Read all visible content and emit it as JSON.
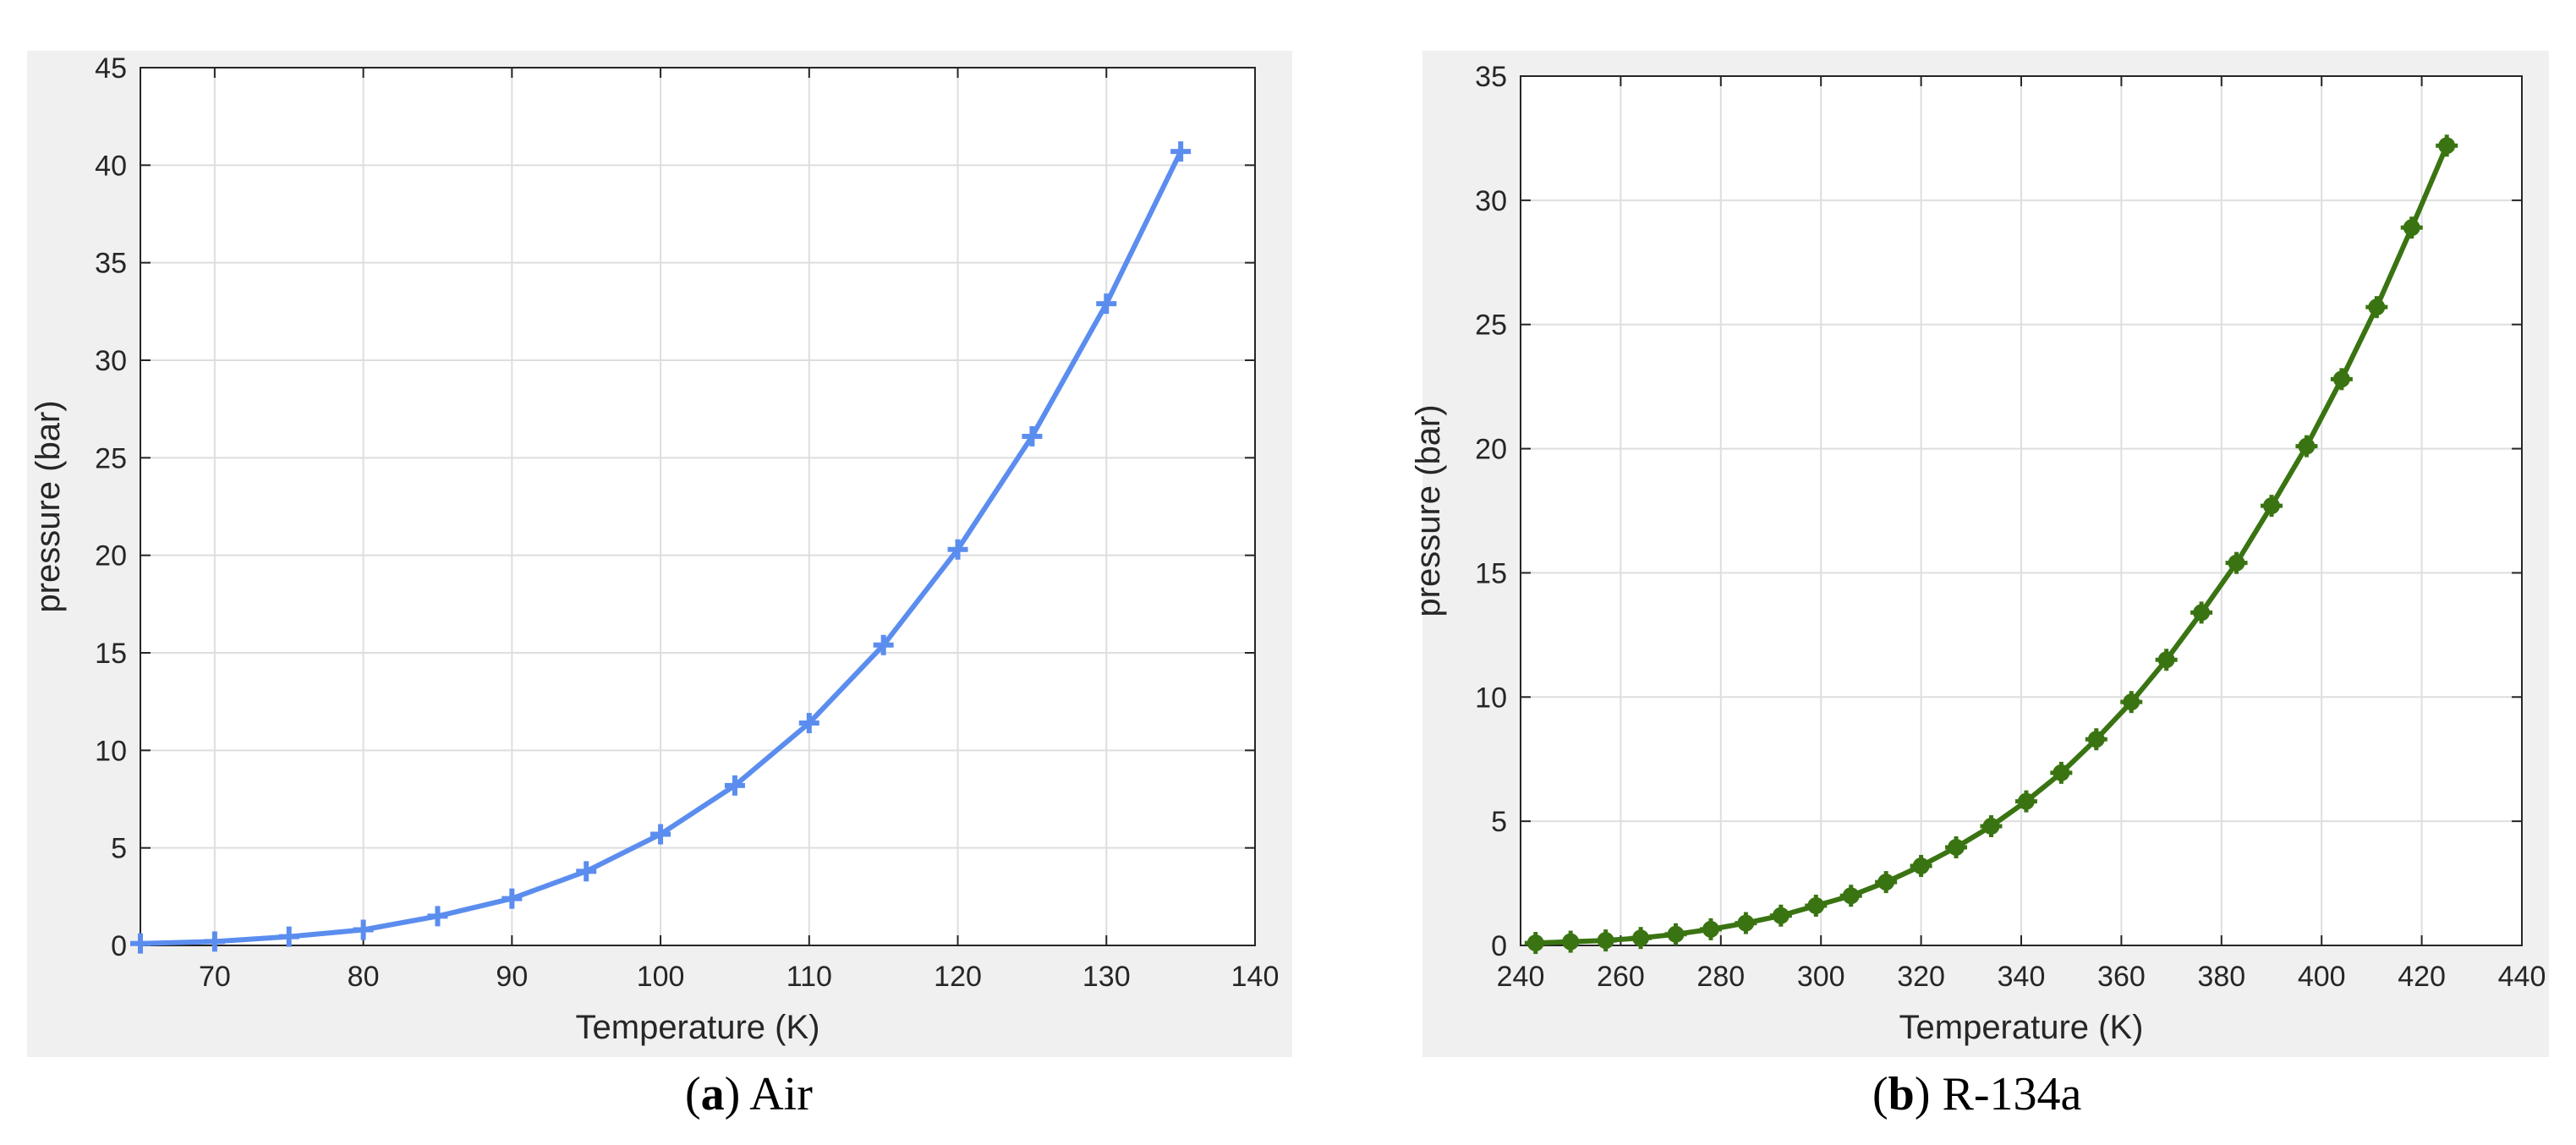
{
  "chart_data": [
    {
      "type": "line",
      "title": "",
      "xlabel": "Temperature (K)",
      "ylabel": "pressure (bar)",
      "xlim": [
        65,
        140
      ],
      "ylim": [
        0,
        45
      ],
      "xticks": [
        70,
        80,
        90,
        100,
        110,
        120,
        130,
        140
      ],
      "yticks": [
        0,
        5,
        10,
        15,
        20,
        25,
        30,
        35,
        40,
        45
      ],
      "grid": true,
      "legend": "none",
      "marker": "plus",
      "color": "#5b8def",
      "series": [
        {
          "x": [
            65,
            70,
            75,
            80,
            85,
            90,
            95,
            100,
            105,
            110,
            115,
            120,
            125,
            130,
            135
          ],
          "y": [
            0.1,
            0.2,
            0.45,
            0.8,
            1.5,
            2.4,
            3.8,
            5.7,
            8.2,
            11.4,
            15.4,
            20.3,
            26.1,
            32.9,
            40.7
          ]
        }
      ],
      "caption_letter": "a",
      "caption_text": " Air"
    },
    {
      "type": "line",
      "title": "",
      "xlabel": "Temperature (K)",
      "ylabel": "pressure (bar)",
      "xlim": [
        240,
        440
      ],
      "ylim": [
        0,
        35
      ],
      "xticks": [
        240,
        260,
        280,
        300,
        320,
        340,
        360,
        380,
        400,
        420,
        440
      ],
      "yticks": [
        0,
        5,
        10,
        15,
        20,
        25,
        30,
        35
      ],
      "grid": true,
      "legend": "none",
      "marker": "filled-circle-plus",
      "color": "#3a7412",
      "series": [
        {
          "x": [
            243,
            250,
            257,
            264,
            271,
            278,
            285,
            292,
            299,
            306,
            313,
            320,
            327,
            334,
            341,
            348,
            355,
            362,
            369,
            376,
            383,
            390,
            397,
            404,
            411,
            418,
            425
          ],
          "y": [
            0.1,
            0.15,
            0.2,
            0.3,
            0.45,
            0.65,
            0.9,
            1.2,
            1.6,
            2.0,
            2.55,
            3.2,
            3.95,
            4.8,
            5.8,
            6.95,
            8.3,
            9.8,
            11.5,
            13.4,
            15.4,
            17.7,
            20.1,
            22.8,
            25.7,
            28.9,
            32.2
          ]
        }
      ],
      "caption_letter": "b",
      "caption_text": " R-134a"
    }
  ]
}
